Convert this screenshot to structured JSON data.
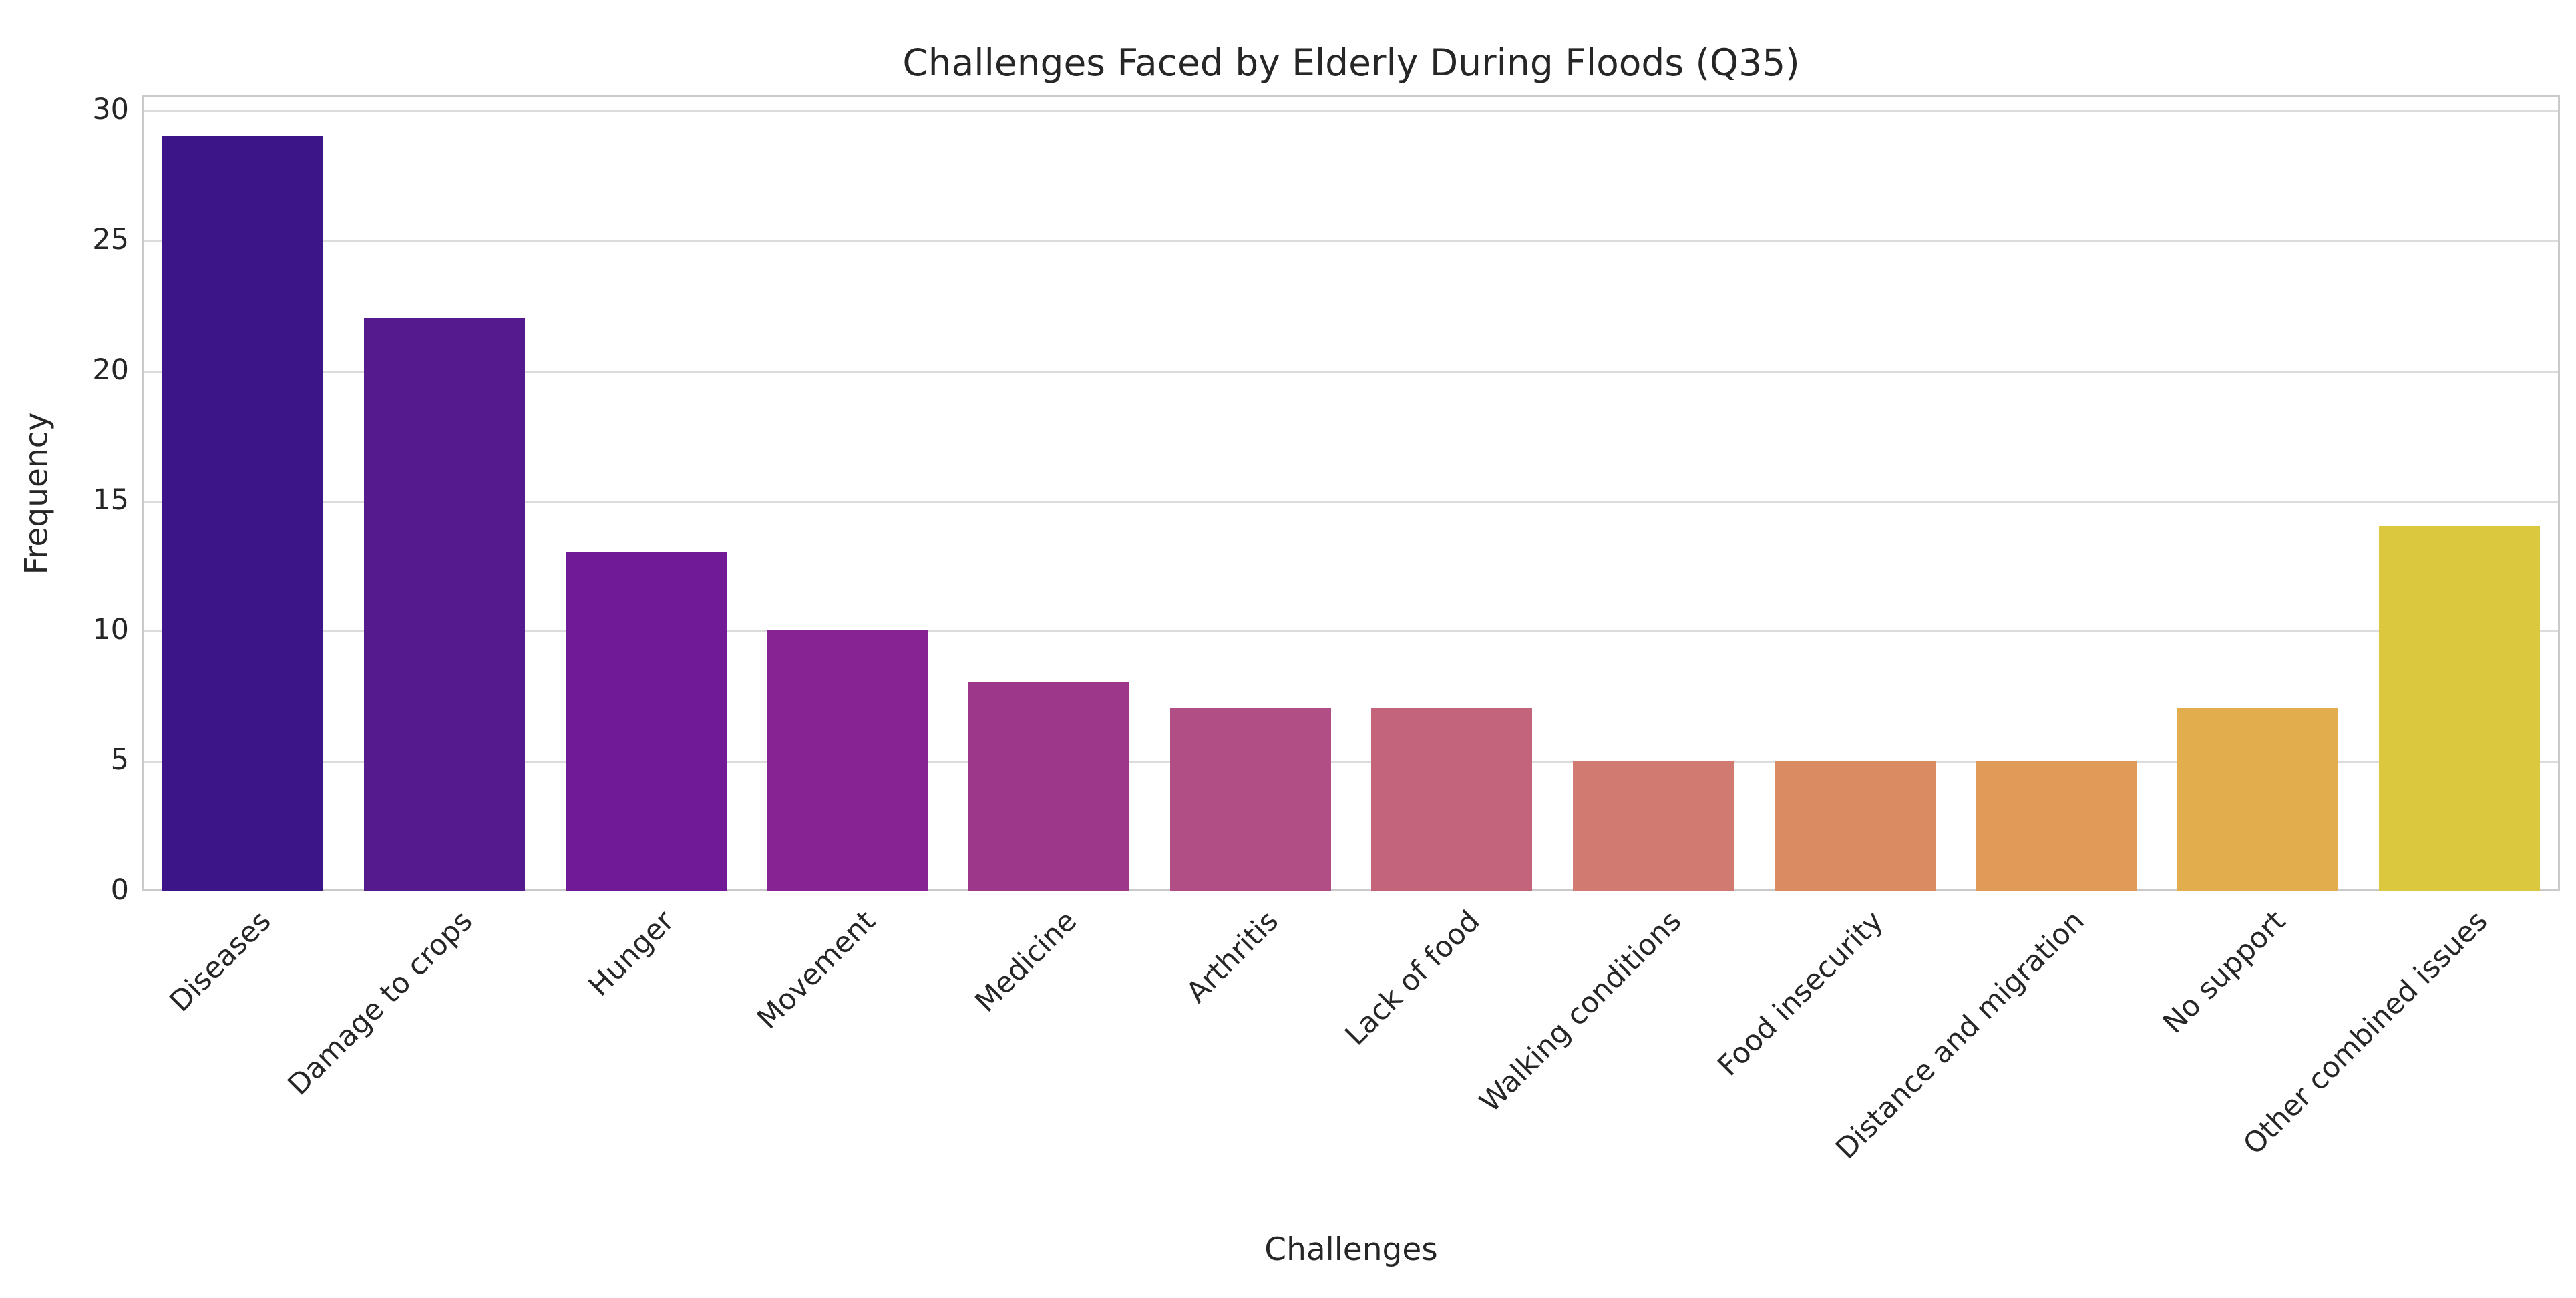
{
  "figure": {
    "background": "#ffffff",
    "text_color": "#262626"
  },
  "chart_data": {
    "type": "bar",
    "title": "Challenges Faced by Elderly During Floods (Q35)",
    "xlabel": "Challenges",
    "ylabel": "Frequency",
    "categories": [
      "Diseases",
      "Damage to crops",
      "Hunger",
      "Movement",
      "Medicine",
      "Arthritis",
      "Lack of food",
      "Walking conditions",
      "Food insecurity",
      "Distance and migration",
      "No support",
      "Other combined issues"
    ],
    "values": [
      29,
      22,
      13,
      10,
      8,
      7,
      7,
      5,
      5,
      5,
      7,
      14
    ],
    "bar_colors": [
      "#3c1688",
      "#551a8e",
      "#701a97",
      "#882394",
      "#9c3789",
      "#b14e85",
      "#c4647a",
      "#d17a72",
      "#db8b61",
      "#e09b58",
      "#e2ae4d",
      "#dcc83e"
    ],
    "yticks": [
      0,
      5,
      10,
      15,
      20,
      25,
      30
    ],
    "ylim": [
      0,
      30.5
    ],
    "x_tick_rotation": 45,
    "grid": true,
    "grid_color": "#dcdcdc",
    "spine_color": "#cacaca",
    "legend": null
  }
}
